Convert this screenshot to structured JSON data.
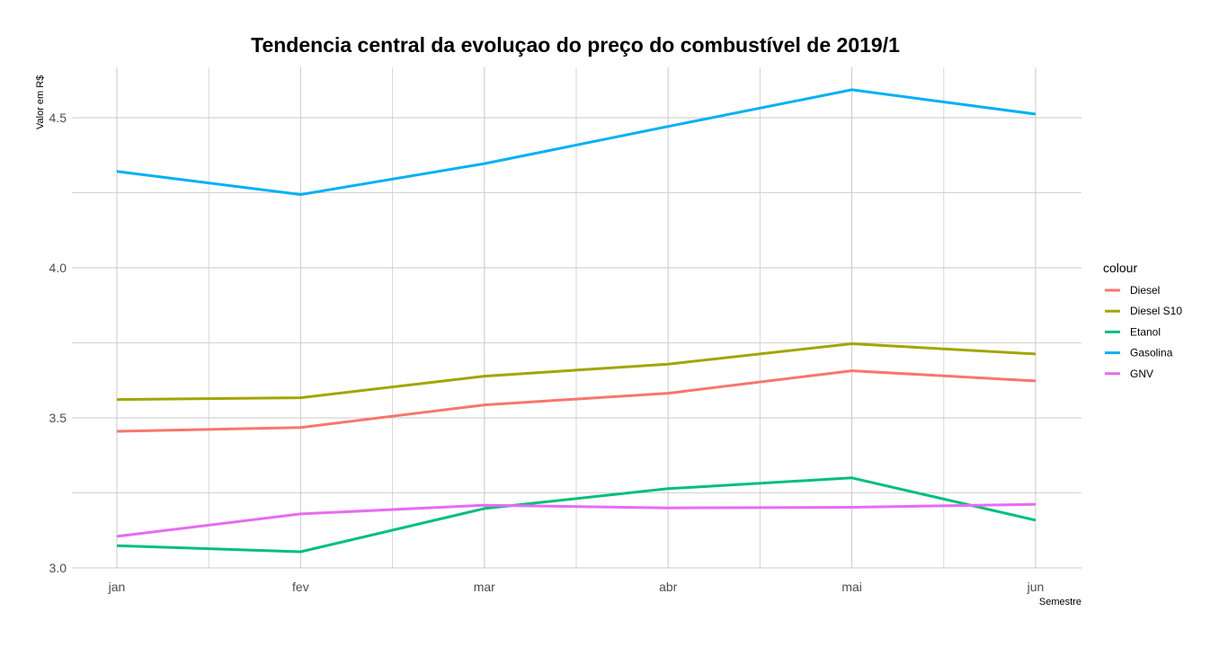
{
  "chart_data": {
    "type": "line",
    "title": "Tendencia central da evoluçao do preço do combustível de 2019/1",
    "xlabel": "Semestre",
    "ylabel": "Valor em R$",
    "categories": [
      "jan",
      "fev",
      "mar",
      "abr",
      "mai",
      "jun"
    ],
    "ylim": [
      3.0,
      4.67
    ],
    "yticks": [
      3.0,
      3.5,
      4.0,
      4.5
    ],
    "ytick_labels": [
      "3.0",
      "3.5",
      "4.0",
      "4.5"
    ],
    "grid": true,
    "legend": {
      "title": "colour",
      "position": "right"
    },
    "series": [
      {
        "name": "Diesel",
        "color": "#F8766D",
        "values": [
          3.455,
          3.468,
          3.543,
          3.582,
          3.657,
          3.623
        ]
      },
      {
        "name": "Diesel S10",
        "color": "#A3A500",
        "values": [
          3.561,
          3.567,
          3.639,
          3.679,
          3.747,
          3.713
        ]
      },
      {
        "name": "Etanol",
        "color": "#00BF7D",
        "values": [
          3.074,
          3.054,
          3.198,
          3.264,
          3.3,
          3.159
        ]
      },
      {
        "name": "Gasolina",
        "color": "#00B0F6",
        "values": [
          4.321,
          4.244,
          4.347,
          4.471,
          4.593,
          4.512
        ]
      },
      {
        "name": "GNV",
        "color": "#E76BF3",
        "values": [
          3.105,
          3.18,
          3.209,
          3.2,
          3.202,
          3.212
        ]
      }
    ]
  }
}
